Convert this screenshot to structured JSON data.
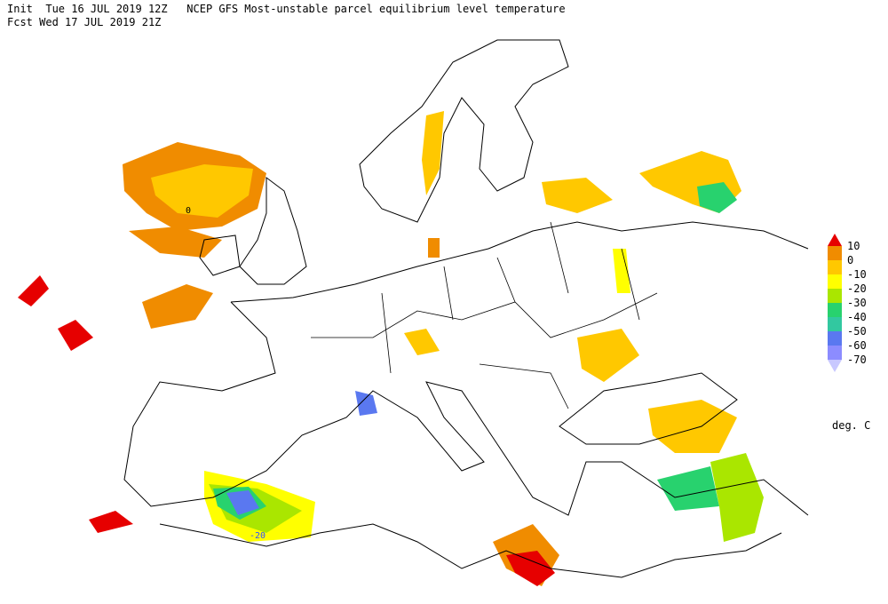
{
  "header": {
    "line1": "Init  Tue 16 JUL 2019 12Z   NCEP GFS Most-unstable parcel equilibrium level temperature",
    "line2": "Fcst Wed 17 JUL 2019 21Z"
  },
  "legend": {
    "labels": [
      "10",
      "0",
      "-10",
      "-20",
      "-30",
      "-40",
      "-50",
      "-60",
      "-70"
    ],
    "colors": [
      "#e60000",
      "#f08c00",
      "#ffc800",
      "#ffff00",
      "#aae600",
      "#28d26e",
      "#32c8a0",
      "#5a78f0",
      "#8c8cff",
      "#c8c8ff"
    ],
    "unit": "deg. C"
  },
  "contour_labels": [
    "0",
    "-20"
  ]
}
